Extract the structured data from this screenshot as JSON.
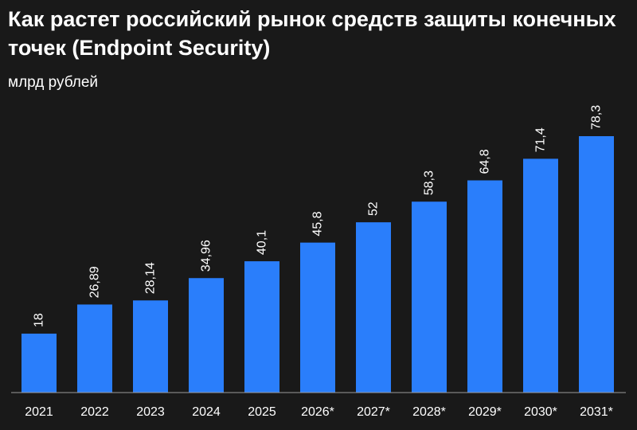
{
  "chart_data": {
    "type": "bar",
    "title": "Как растет российский рынок средств защиты конечных точек (Endpoint Security)",
    "subtitle": "млрд рублей",
    "categories": [
      "2021",
      "2022",
      "2023",
      "2024",
      "2025",
      "2026*",
      "2027*",
      "2028*",
      "2029*",
      "2030*",
      "2031*"
    ],
    "values": [
      18,
      26.89,
      28.14,
      34.96,
      40.1,
      45.8,
      52,
      58.3,
      64.8,
      71.4,
      78.3
    ],
    "data_labels": [
      "18",
      "26,89",
      "28,14",
      "34,96",
      "40,1",
      "45,8",
      "52",
      "58,3",
      "64,8",
      "71,4",
      "78,3"
    ],
    "ylim": [
      0,
      78.3
    ],
    "bar_color": "#2a7efb",
    "background": "#191919",
    "grid": false,
    "legend": "none"
  }
}
